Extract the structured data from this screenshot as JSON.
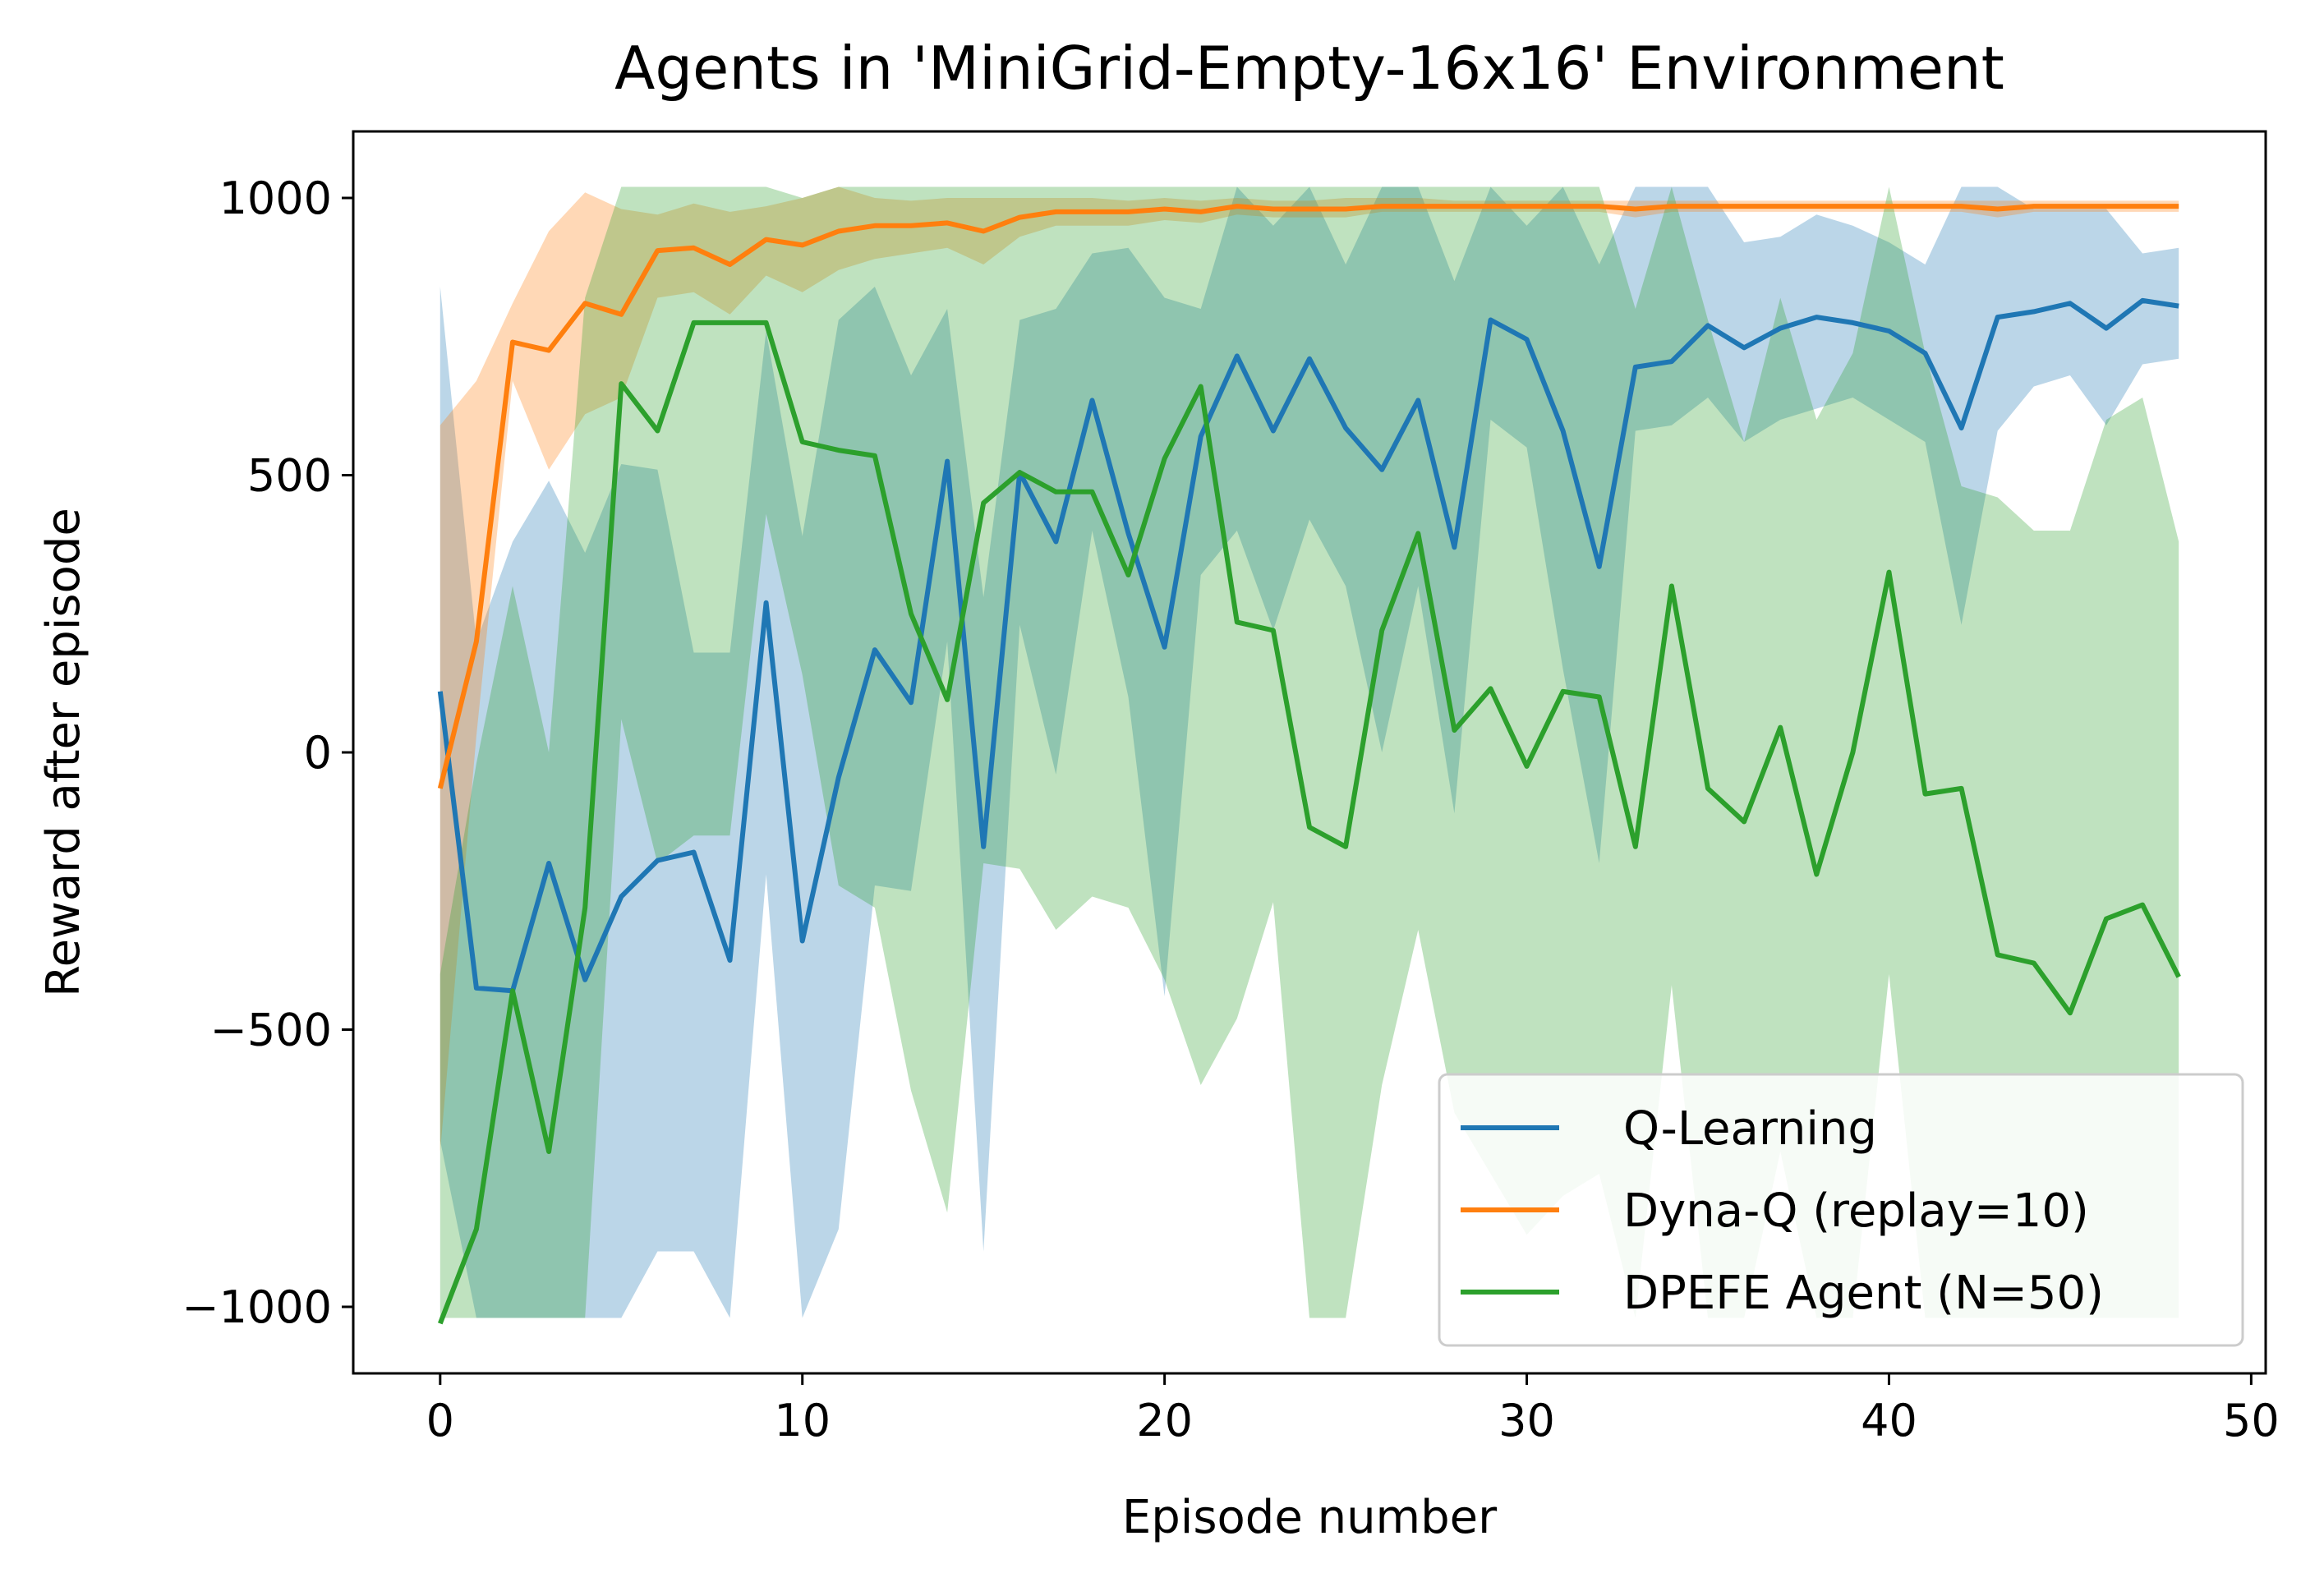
{
  "chart_data": {
    "type": "line",
    "title": "Agents in 'MiniGrid-Empty-16x16' Environment",
    "xlabel": "Episode number",
    "ylabel": "Reward after episode",
    "xlim": [
      -2.4,
      50.4
    ],
    "ylim": [
      -1120,
      1120
    ],
    "xticks": [
      0,
      10,
      20,
      30,
      40,
      50
    ],
    "yticks": [
      -1000,
      -500,
      0,
      500,
      1000
    ],
    "ytick_labels": [
      "−1000",
      "−500",
      "0",
      "500",
      "1000"
    ],
    "grid": false,
    "legend_position": "lower-right",
    "series": [
      {
        "name": "Q-Learning",
        "color": "#1f77b4",
        "mean": [
          110,
          -425,
          -430,
          -200,
          -410,
          -260,
          -195,
          -180,
          -375,
          270,
          -340,
          -45,
          185,
          90,
          525,
          -170,
          505,
          380,
          635,
          395,
          190,
          570,
          715,
          580,
          710,
          585,
          510,
          635,
          370,
          780,
          745,
          580,
          335,
          695,
          705,
          770,
          730,
          765,
          785,
          775,
          760,
          720,
          585,
          785,
          795,
          810,
          765,
          815,
          805
        ],
        "upper": [
          840,
          200,
          380,
          490,
          360,
          520,
          510,
          180,
          180,
          760,
          390,
          780,
          840,
          680,
          800,
          280,
          780,
          800,
          900,
          910,
          820,
          800,
          1020,
          950,
          1020,
          880,
          1020,
          1020,
          850,
          1020,
          950,
          1020,
          880,
          1020,
          1020,
          1020,
          920,
          930,
          970,
          950,
          920,
          880,
          1020,
          1020,
          980,
          980,
          980,
          900,
          910
        ],
        "lower": [
          -700,
          -1020,
          -1020,
          -1020,
          -1020,
          -1020,
          -900,
          -900,
          -1020,
          -220,
          -1020,
          -860,
          -240,
          -250,
          200,
          -900,
          230,
          -40,
          400,
          100,
          -440,
          320,
          400,
          220,
          420,
          300,
          0,
          300,
          -110,
          600,
          550,
          150,
          -200,
          580,
          590,
          640,
          560,
          600,
          620,
          640,
          600,
          560,
          230,
          580,
          660,
          680,
          590,
          700,
          710
        ]
      },
      {
        "name": "Dyna-Q (replay=10)",
        "color": "#ff7f0e",
        "mean": [
          -65,
          200,
          740,
          725,
          810,
          790,
          905,
          910,
          880,
          925,
          915,
          940,
          950,
          950,
          955,
          940,
          965,
          975,
          975,
          975,
          980,
          975,
          985,
          980,
          980,
          980,
          985,
          985,
          985,
          985,
          985,
          985,
          985,
          980,
          985,
          985,
          985,
          985,
          985,
          985,
          985,
          985,
          985,
          980,
          985,
          985,
          985,
          985,
          985
        ],
        "upper": [
          590,
          670,
          810,
          940,
          1010,
          980,
          970,
          990,
          975,
          985,
          1000,
          1020,
          1000,
          995,
          1000,
          1000,
          1000,
          1000,
          1000,
          995,
          1000,
          995,
          1000,
          995,
          995,
          1000,
          1000,
          1000,
          995,
          995,
          995,
          995,
          995,
          995,
          995,
          995,
          995,
          995,
          995,
          995,
          995,
          995,
          995,
          995,
          995,
          995,
          995,
          995,
          995
        ],
        "lower": [
          -720,
          30,
          670,
          510,
          610,
          640,
          820,
          830,
          790,
          860,
          830,
          870,
          890,
          900,
          910,
          880,
          930,
          950,
          950,
          950,
          960,
          955,
          970,
          965,
          965,
          965,
          975,
          975,
          975,
          975,
          975,
          975,
          975,
          965,
          975,
          975,
          975,
          975,
          975,
          975,
          975,
          975,
          975,
          965,
          975,
          975,
          975,
          975,
          975
        ]
      },
      {
        "name": "DPEFE Agent (N=50)",
        "color": "#2ca02c",
        "mean": [
          -1030,
          -860,
          -430,
          -720,
          -280,
          665,
          580,
          775,
          775,
          775,
          560,
          545,
          535,
          250,
          95,
          450,
          505,
          470,
          470,
          320,
          530,
          660,
          235,
          220,
          -135,
          -170,
          220,
          395,
          40,
          115,
          -25,
          110,
          100,
          -170,
          300,
          -65,
          -125,
          45,
          -220,
          0,
          325,
          -75,
          -65,
          -365,
          -380,
          -470,
          -300,
          -275,
          -405
        ],
        "upper": [
          -400,
          -20,
          300,
          0,
          820,
          1020,
          1020,
          1020,
          1020,
          1020,
          1000,
          1020,
          1020,
          1020,
          1020,
          1020,
          1020,
          1020,
          1020,
          1020,
          1020,
          1020,
          1020,
          1020,
          1020,
          1020,
          1020,
          1020,
          1020,
          1020,
          1020,
          1020,
          1020,
          800,
          1020,
          780,
          560,
          820,
          600,
          720,
          1020,
          720,
          480,
          460,
          400,
          400,
          600,
          640,
          380
        ],
        "lower": [
          -1020,
          -1020,
          -1020,
          -1020,
          -1020,
          60,
          -200,
          -150,
          -150,
          430,
          140,
          -240,
          -280,
          -610,
          -830,
          -200,
          -210,
          -320,
          -260,
          -280,
          -410,
          -600,
          -480,
          -270,
          -1020,
          -1020,
          -600,
          -320,
          -650,
          -760,
          -870,
          -800,
          -760,
          -1020,
          -420,
          -1020,
          -1020,
          -720,
          -1020,
          -1020,
          -400,
          -1020,
          -1020,
          -1020,
          -1020,
          -1020,
          -1020,
          -1020,
          -1020
        ]
      }
    ]
  }
}
